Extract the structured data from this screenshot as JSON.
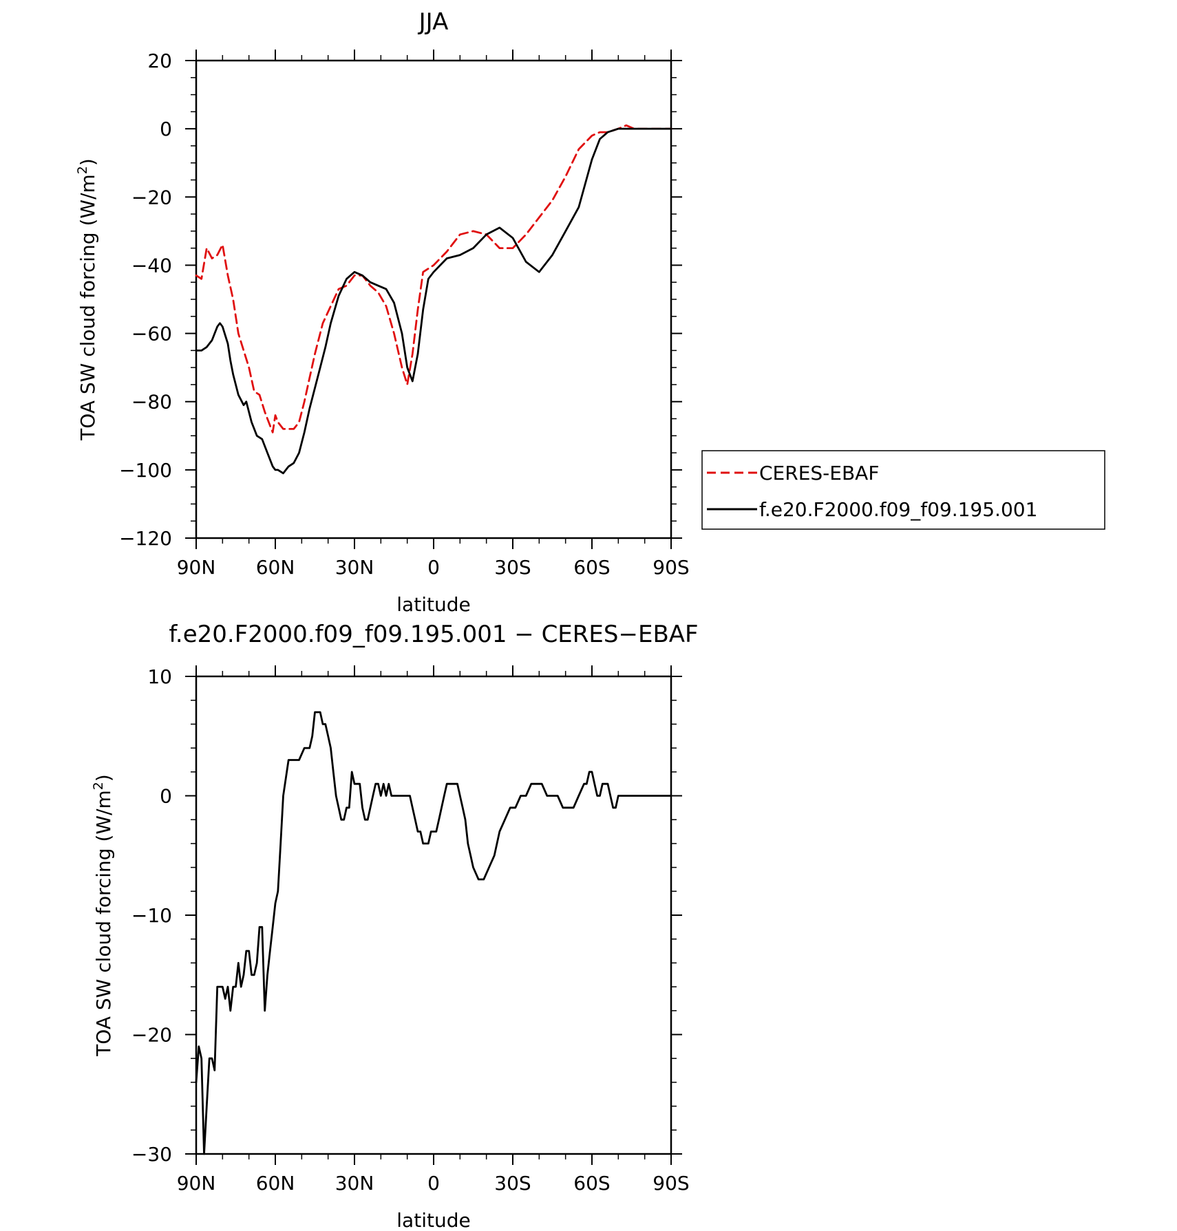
{
  "chart_data": [
    {
      "type": "line",
      "title": "JJA",
      "xlabel": "latitude",
      "ylabel": "TOA SW cloud forcing (W/m",
      "ylabel_sup": "2",
      "ylabel_close": ")",
      "xlim": [
        90,
        -90
      ],
      "ylim": [
        -120,
        20
      ],
      "xticks": [
        {
          "value": 90,
          "label": "90N"
        },
        {
          "value": 60,
          "label": "60N"
        },
        {
          "value": 30,
          "label": "30N"
        },
        {
          "value": 0,
          "label": "0"
        },
        {
          "value": -30,
          "label": "30S"
        },
        {
          "value": -60,
          "label": "60S"
        },
        {
          "value": -90,
          "label": "90S"
        }
      ],
      "yticks": [
        20,
        0,
        -20,
        -40,
        -60,
        -80,
        -100,
        -120
      ],
      "grid": false,
      "legend": "right",
      "series": [
        {
          "name": "CERES-EBAF",
          "color": "#e01010",
          "dash": "dashed",
          "x": [
            90,
            88,
            86,
            84,
            82,
            80,
            78,
            76,
            74,
            72,
            70,
            68,
            66,
            64,
            62,
            61,
            60,
            59,
            57,
            55,
            53,
            51,
            49,
            47,
            45,
            42,
            39,
            36,
            33,
            30,
            27,
            24,
            21,
            18,
            15,
            12,
            10,
            8,
            6,
            4,
            2,
            0,
            -5,
            -10,
            -15,
            -20,
            -25,
            -30,
            -35,
            -40,
            -45,
            -50,
            -55,
            -60,
            -63,
            -66,
            -70,
            -73,
            -76,
            -78,
            -80,
            -85,
            -90
          ],
          "y": [
            -43,
            -44,
            -35,
            -38,
            -37,
            -34,
            -43,
            -50,
            -60,
            -65,
            -70,
            -77,
            -78,
            -83,
            -87,
            -89,
            -84,
            -86,
            -88,
            -88,
            -88,
            -86,
            -80,
            -73,
            -66,
            -57,
            -52,
            -47,
            -46,
            -43,
            -43,
            -46,
            -48,
            -52,
            -60,
            -70,
            -75,
            -66,
            -53,
            -42,
            -41,
            -40,
            -36,
            -31,
            -30,
            -31,
            -35,
            -35,
            -31,
            -26,
            -21,
            -14,
            -6,
            -2,
            -1,
            -1,
            0,
            1,
            0,
            0,
            0,
            0,
            0
          ]
        },
        {
          "name": "f.e20.F2000.f09_f09.195.001",
          "color": "#000000",
          "dash": "solid",
          "x": [
            90,
            88,
            86,
            84,
            82,
            81,
            80,
            78,
            77,
            76,
            74,
            72,
            71,
            69,
            67,
            65,
            63,
            61,
            60,
            59,
            57,
            55,
            53,
            51,
            49,
            47,
            45,
            43,
            41,
            39,
            36,
            33,
            30,
            27,
            24,
            21,
            18,
            15,
            12,
            10,
            8,
            6,
            4,
            2,
            0,
            -5,
            -10,
            -15,
            -20,
            -25,
            -30,
            -35,
            -40,
            -45,
            -50,
            -55,
            -60,
            -63,
            -66,
            -70,
            -75,
            -80,
            -85,
            -90
          ],
          "y": [
            -65,
            -65,
            -64,
            -62,
            -58,
            -57,
            -58,
            -63,
            -68,
            -72,
            -78,
            -81,
            -80,
            -86,
            -90,
            -91,
            -95,
            -99,
            -100,
            -100,
            -101,
            -99,
            -98,
            -95,
            -89,
            -82,
            -76,
            -70,
            -64,
            -57,
            -49,
            -44,
            -42,
            -43,
            -45,
            -46,
            -47,
            -51,
            -60,
            -70,
            -74,
            -66,
            -53,
            -44,
            -42,
            -38,
            -37,
            -35,
            -31,
            -29,
            -32,
            -39,
            -42,
            -37,
            -30,
            -23,
            -9,
            -3,
            -1,
            0,
            0,
            0,
            0,
            0
          ]
        }
      ]
    },
    {
      "type": "line",
      "title": "f.e20.F2000.f09_f09.195.001 − CERES−EBAF",
      "xlabel": "latitude",
      "ylabel": "TOA SW cloud forcing (W/m",
      "ylabel_sup": "2",
      "ylabel_close": ")",
      "xlim": [
        90,
        -90
      ],
      "ylim": [
        -30,
        10
      ],
      "xticks": [
        {
          "value": 90,
          "label": "90N"
        },
        {
          "value": 60,
          "label": "60N"
        },
        {
          "value": 30,
          "label": "30N"
        },
        {
          "value": 0,
          "label": "0"
        },
        {
          "value": -30,
          "label": "30S"
        },
        {
          "value": -60,
          "label": "60S"
        },
        {
          "value": -90,
          "label": "90S"
        }
      ],
      "yticks": [
        10,
        0,
        -10,
        -20,
        -30
      ],
      "grid": false,
      "series": [
        {
          "name": "",
          "color": "#000000",
          "dash": "solid",
          "x": [
            90,
            89,
            88,
            87,
            86,
            85,
            84,
            83,
            82,
            81,
            80,
            79,
            78,
            77,
            76,
            75,
            74,
            73,
            72,
            71,
            70,
            69,
            68,
            67,
            66,
            65,
            64,
            63,
            62,
            61,
            60,
            59,
            58,
            57,
            55,
            53,
            51,
            49,
            48,
            47,
            46,
            45,
            44,
            43,
            42,
            41,
            40,
            39,
            38,
            37,
            36,
            35,
            34,
            33,
            32,
            31,
            30,
            29,
            28,
            27,
            26,
            25,
            24,
            23,
            22,
            21,
            20,
            19,
            18,
            17,
            16,
            15,
            14,
            13,
            12,
            11,
            10,
            9,
            8,
            7,
            6,
            5,
            4,
            3,
            2,
            1,
            0,
            -1,
            -2,
            -3,
            -4,
            -5,
            -6,
            -7,
            -8,
            -9,
            -10,
            -11,
            -12,
            -13,
            -14,
            -15,
            -17,
            -19,
            -21,
            -23,
            -25,
            -27,
            -29,
            -31,
            -33,
            -35,
            -37,
            -39,
            -41,
            -43,
            -45,
            -47,
            -49,
            -51,
            -53,
            -55,
            -57,
            -58,
            -59,
            -60,
            -61,
            -62,
            -63,
            -64,
            -65,
            -66,
            -67,
            -68,
            -69,
            -70,
            -72,
            -74,
            -75,
            -76,
            -77,
            -78,
            -79,
            -80,
            -82,
            -84,
            -86,
            -88,
            -90
          ],
          "y": [
            -24,
            -21,
            -22,
            -30,
            -26,
            -22,
            -22,
            -23,
            -16,
            -16,
            -16,
            -17,
            -16,
            -18,
            -16,
            -16,
            -14,
            -16,
            -15,
            -13,
            -13,
            -15,
            -15,
            -14,
            -11,
            -11,
            -18,
            -15,
            -13,
            -11,
            -9,
            -8,
            -4,
            0,
            3,
            3,
            3,
            4,
            4,
            4,
            5,
            7,
            7,
            7,
            6,
            6,
            5,
            4,
            2,
            0,
            -1,
            -2,
            -2,
            -1,
            -1,
            2,
            1,
            1,
            1,
            -1,
            -2,
            -2,
            -1,
            0,
            1,
            1,
            0,
            1,
            0,
            1,
            0,
            0,
            0,
            0,
            0,
            0,
            0,
            0,
            -1,
            -2,
            -3,
            -3,
            -4,
            -4,
            -4,
            -3,
            -3,
            -3,
            -2,
            -1,
            0,
            1,
            1,
            1,
            1,
            1,
            0,
            -1,
            -2,
            -4,
            -5,
            -6,
            -7,
            -7,
            -6,
            -5,
            -3,
            -2,
            -1,
            -1,
            0,
            0,
            1,
            1,
            1,
            0,
            0,
            0,
            -1,
            -1,
            -1,
            0,
            1,
            1,
            2,
            2,
            1,
            0,
            0,
            1,
            1,
            1,
            0,
            -1,
            -1,
            0,
            0,
            0,
            0,
            0,
            0,
            0,
            0,
            0,
            0,
            0,
            0,
            0,
            0
          ]
        }
      ]
    }
  ]
}
